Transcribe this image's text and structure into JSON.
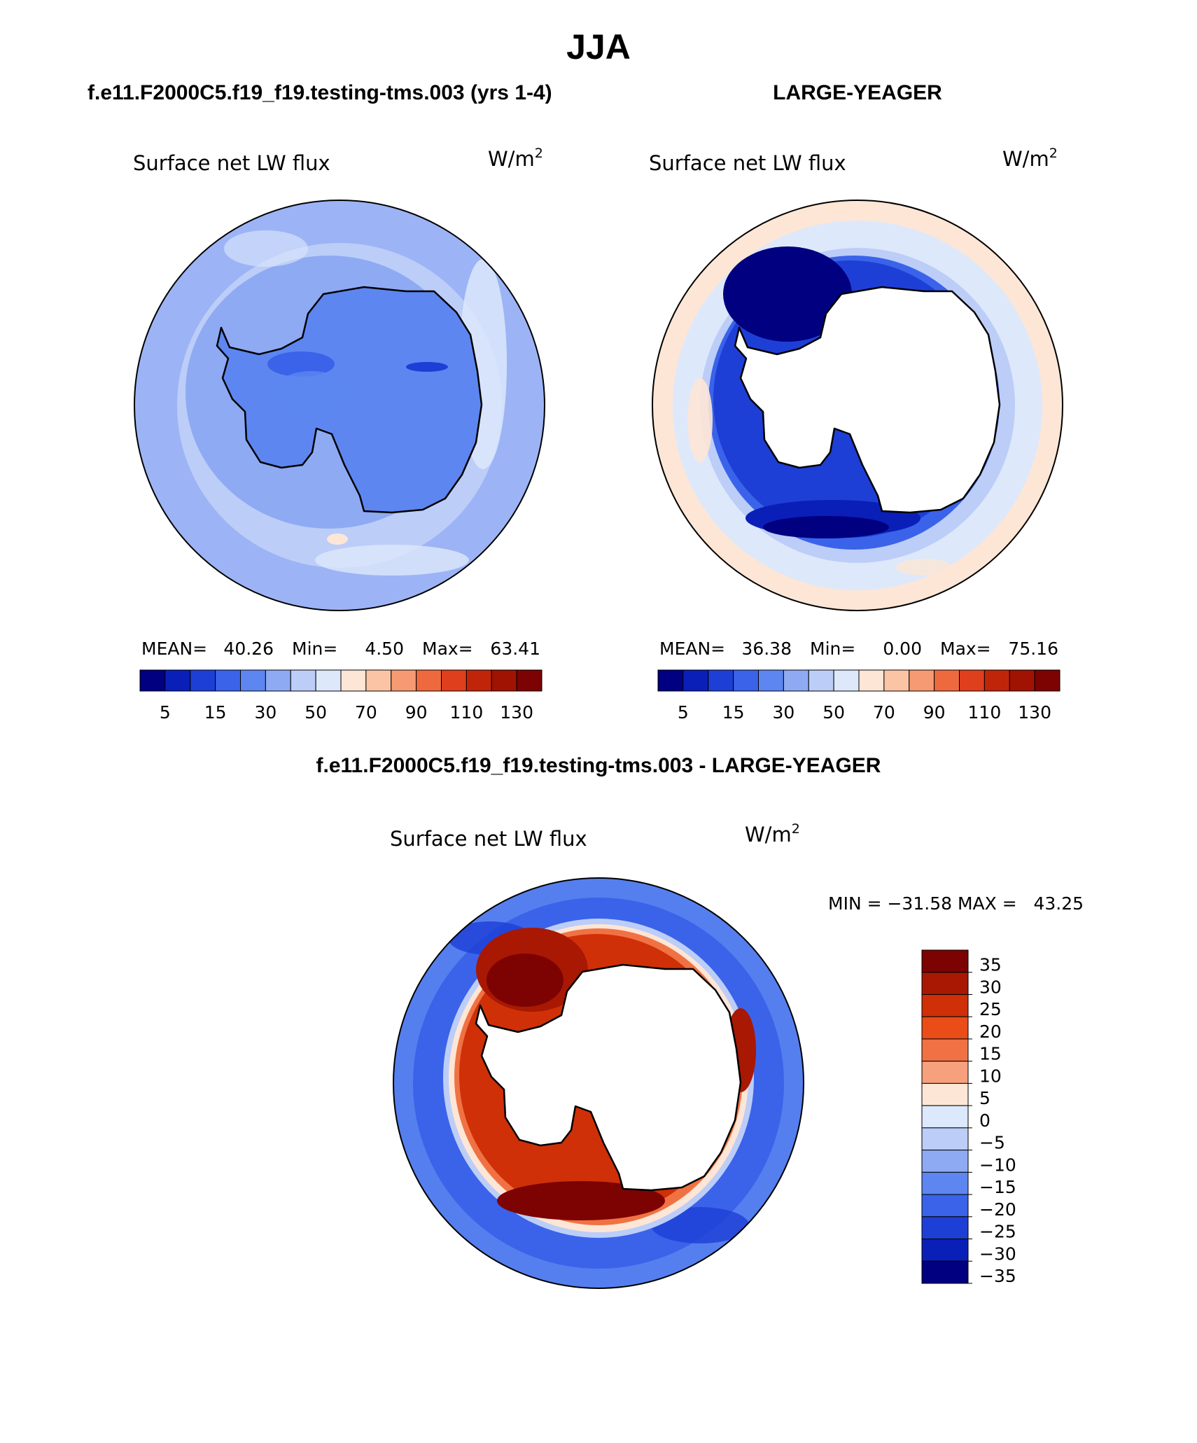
{
  "title": "JJA",
  "panels": [
    {
      "case": "f.e11.F2000C5.f19_f19.testing-tms.003 (yrs 1-4)",
      "variable": "Surface net LW flux",
      "units": "W/m",
      "units_sup": "2",
      "stats": {
        "mean_label": "MEAN=",
        "mean": "40.26",
        "min_label": "Min=",
        "min": "4.50",
        "max_label": "Max=",
        "max": "63.41"
      },
      "colorbar_labels": [
        "5",
        "15",
        "30",
        "50",
        "70",
        "90",
        "110",
        "130"
      ]
    },
    {
      "case": "LARGE-YEAGER",
      "variable": "Surface net LW flux",
      "units": "W/m",
      "units_sup": "2",
      "stats": {
        "mean_label": "MEAN=",
        "mean": "36.38",
        "min_label": "Min=",
        "min": "0.00",
        "max_label": "Max=",
        "max": "75.16"
      },
      "colorbar_labels": [
        "5",
        "15",
        "30",
        "50",
        "70",
        "90",
        "110",
        "130"
      ]
    }
  ],
  "diff": {
    "title": "f.e11.F2000C5.f19_f19.testing-tms.003 - LARGE-YEAGER",
    "variable": "Surface net LW flux",
    "units": "W/m",
    "units_sup": "2",
    "minmax": "MIN = −31.58 MAX =   43.25",
    "colorbar_labels": [
      "35",
      "30",
      "25",
      "20",
      "15",
      "10",
      "5",
      "0",
      "−5",
      "−10",
      "−15",
      "−20",
      "−25",
      "−30",
      "−35"
    ]
  },
  "colors": {
    "seq_palette": [
      "#000080",
      "#0a1fb8",
      "#1e3fd6",
      "#3a63ea",
      "#5d86f0",
      "#8eaaf3",
      "#bccdf8",
      "#dde8fb",
      "#fde6d6",
      "#fbc5a5",
      "#f59a72",
      "#ee6a3e",
      "#df3f1c",
      "#c02509",
      "#a01303",
      "#7d0303"
    ],
    "diff_palette": [
      "#7d0303",
      "#a81803",
      "#cf3008",
      "#ea4d18",
      "#f07244",
      "#f6a07d",
      "#fde6d6",
      "#dce8fb",
      "#bccdf8",
      "#8eaaf3",
      "#5d86f0",
      "#3a63ea",
      "#1e3fd6",
      "#0a1fb8",
      "#000080"
    ],
    "land": "#ffffff",
    "coast": "#000000"
  }
}
